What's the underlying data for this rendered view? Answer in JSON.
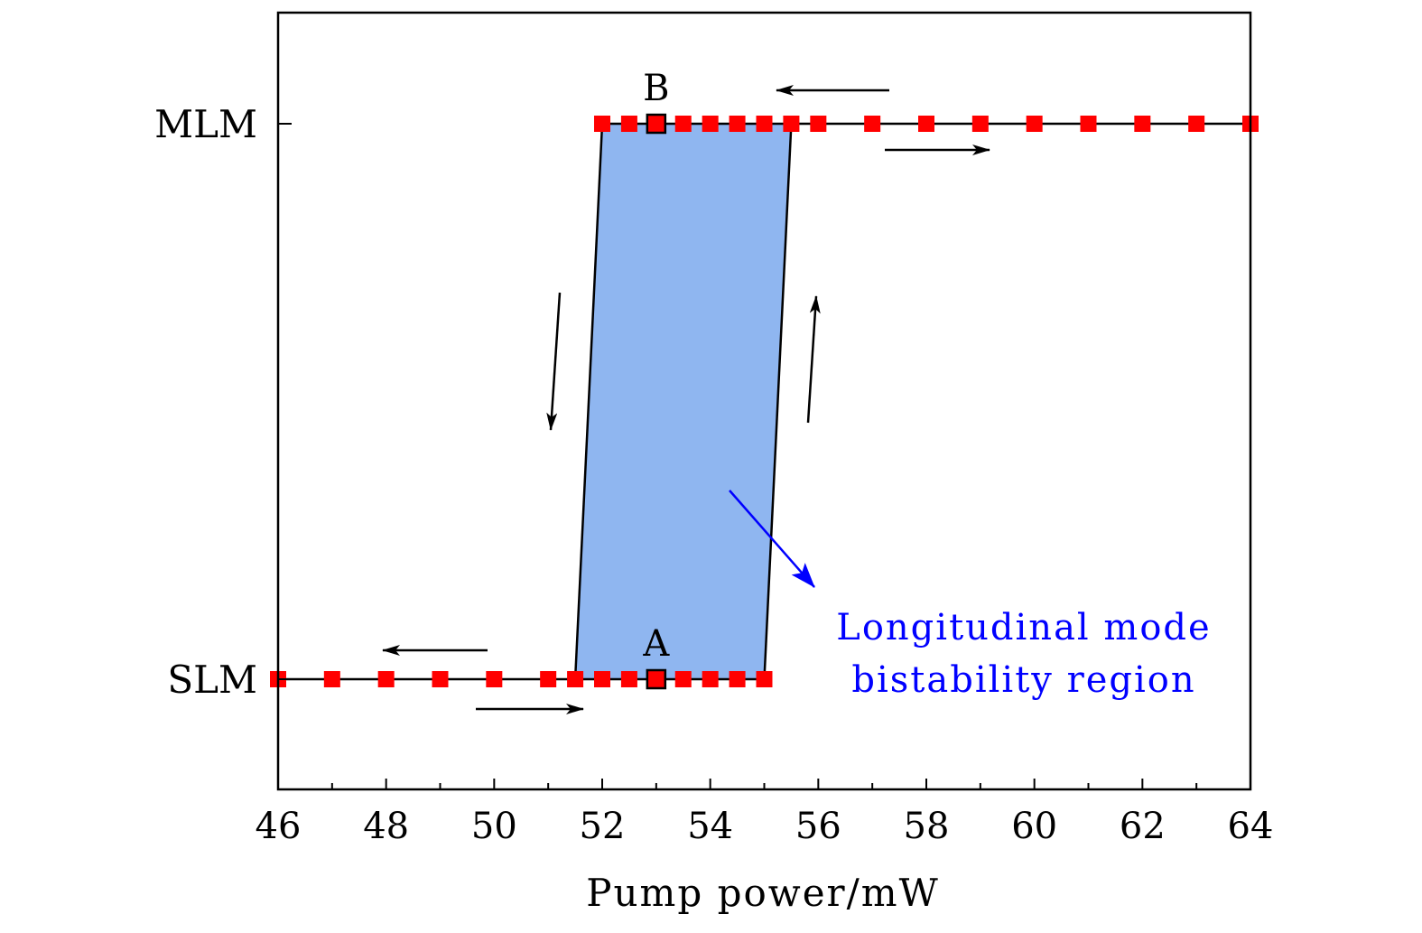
{
  "chart_data": {
    "type": "line",
    "xlabel": "Pump power/mW",
    "ylabel": "",
    "xlim": [
      46,
      64
    ],
    "x_ticks": [
      "46",
      "48",
      "50",
      "52",
      "54",
      "56",
      "58",
      "60",
      "62",
      "64"
    ],
    "y_categories": [
      "SLM",
      "MLM"
    ],
    "grid": false,
    "series": [
      {
        "level": "SLM",
        "marker_color": "#ff0000",
        "x": [
          46,
          47,
          48,
          49,
          50,
          51,
          51.5,
          52,
          52.5,
          53,
          53.5,
          54,
          54.5,
          55
        ]
      },
      {
        "level": "MLM",
        "marker_color": "#ff0000",
        "x": [
          52,
          52.5,
          53,
          53.5,
          54,
          54.5,
          55,
          55.5,
          56,
          57,
          58,
          59,
          60,
          61,
          62,
          63,
          64
        ]
      }
    ],
    "region": {
      "color": "#8fb6f0",
      "bottom": [
        51.5,
        55
      ],
      "top": [
        52,
        55.5
      ]
    },
    "points": [
      {
        "label": "A",
        "x": 53,
        "level": "SLM"
      },
      {
        "label": "B",
        "x": 53,
        "level": "MLM"
      }
    ],
    "annotation": {
      "lines": [
        "Longitudinal mode",
        "bistability region"
      ],
      "color": "#0000ff"
    }
  }
}
